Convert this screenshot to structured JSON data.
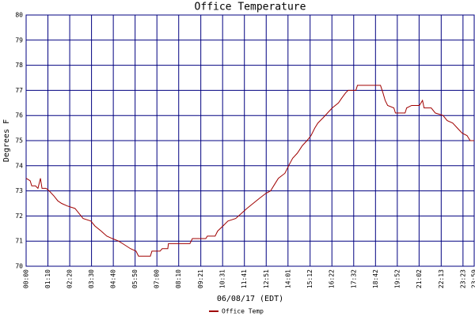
{
  "chart_data": {
    "type": "line",
    "title": "Office Temperature",
    "xlabel": "06/08/17 (EDT)",
    "ylabel": "Degrees F",
    "x": [
      0,
      13,
      18,
      30,
      38,
      46,
      51,
      64,
      74,
      89,
      102,
      114,
      132,
      157,
      170,
      183,
      208,
      221,
      241,
      259,
      277,
      297,
      310,
      335,
      353,
      361,
      399,
      404,
      430,
      437,
      455,
      457,
      526,
      534,
      577,
      582,
      607,
      615,
      632,
      648,
      673,
      691,
      709,
      729,
      749,
      770,
      785,
      800,
      810,
      831,
      843,
      856,
      871,
      887,
      902,
      915,
      927,
      937,
      953,
      968,
      983,
      1003,
      1014,
      1026,
      1034,
      1059,
      1064,
      1138,
      1146,
      1153,
      1161,
      1181,
      1186,
      1217,
      1222,
      1238,
      1263,
      1273,
      1278,
      1301,
      1314,
      1339,
      1352,
      1370,
      1385,
      1400,
      1416,
      1426,
      1439
    ],
    "series": [
      {
        "name": "Office Temp",
        "color": "#a00000",
        "values": [
          73.5,
          73.4,
          73.2,
          73.2,
          73.1,
          73.5,
          73.1,
          73.1,
          73.0,
          72.8,
          72.6,
          72.5,
          72.4,
          72.3,
          72.1,
          71.9,
          71.8,
          71.6,
          71.4,
          71.2,
          71.1,
          71.0,
          70.9,
          70.7,
          70.6,
          70.4,
          70.4,
          70.6,
          70.6,
          70.7,
          70.7,
          70.9,
          70.9,
          71.1,
          71.1,
          71.2,
          71.2,
          71.4,
          71.6,
          71.8,
          71.9,
          72.1,
          72.3,
          72.5,
          72.7,
          72.9,
          73.0,
          73.3,
          73.5,
          73.7,
          74.0,
          74.3,
          74.5,
          74.8,
          75.0,
          75.2,
          75.5,
          75.7,
          75.9,
          76.1,
          76.3,
          76.5,
          76.7,
          76.9,
          77.0,
          77.0,
          77.2,
          77.2,
          76.9,
          76.6,
          76.4,
          76.3,
          76.1,
          76.1,
          76.3,
          76.4,
          76.4,
          76.6,
          76.3,
          76.3,
          76.1,
          76.0,
          75.8,
          75.7,
          75.5,
          75.3,
          75.2,
          75.0,
          75.0
        ]
      }
    ],
    "xlim": [
      0,
      1439
    ],
    "xticks": [
      {
        "value": 0,
        "label": "00:00"
      },
      {
        "value": 70,
        "label": "01:10"
      },
      {
        "value": 140,
        "label": "02:20"
      },
      {
        "value": 210,
        "label": "03:30"
      },
      {
        "value": 280,
        "label": "04:40"
      },
      {
        "value": 350,
        "label": "05:50"
      },
      {
        "value": 420,
        "label": "07:00"
      },
      {
        "value": 490,
        "label": "08:10"
      },
      {
        "value": 561,
        "label": "09:21"
      },
      {
        "value": 631,
        "label": "10:31"
      },
      {
        "value": 701,
        "label": "11:41"
      },
      {
        "value": 771,
        "label": "12:51"
      },
      {
        "value": 841,
        "label": "14:01"
      },
      {
        "value": 912,
        "label": "15:12"
      },
      {
        "value": 982,
        "label": "16:22"
      },
      {
        "value": 1052,
        "label": "17:32"
      },
      {
        "value": 1122,
        "label": "18:42"
      },
      {
        "value": 1192,
        "label": "19:52"
      },
      {
        "value": 1262,
        "label": "21:02"
      },
      {
        "value": 1333,
        "label": "22:13"
      },
      {
        "value": 1403,
        "label": "23:23"
      },
      {
        "value": 1439,
        "label": "23:59"
      }
    ],
    "ylim": [
      70,
      80
    ],
    "yticks": [
      70,
      71,
      72,
      73,
      74,
      75,
      76,
      77,
      78,
      79,
      80
    ],
    "grid": true,
    "grid_color": "#000080"
  }
}
